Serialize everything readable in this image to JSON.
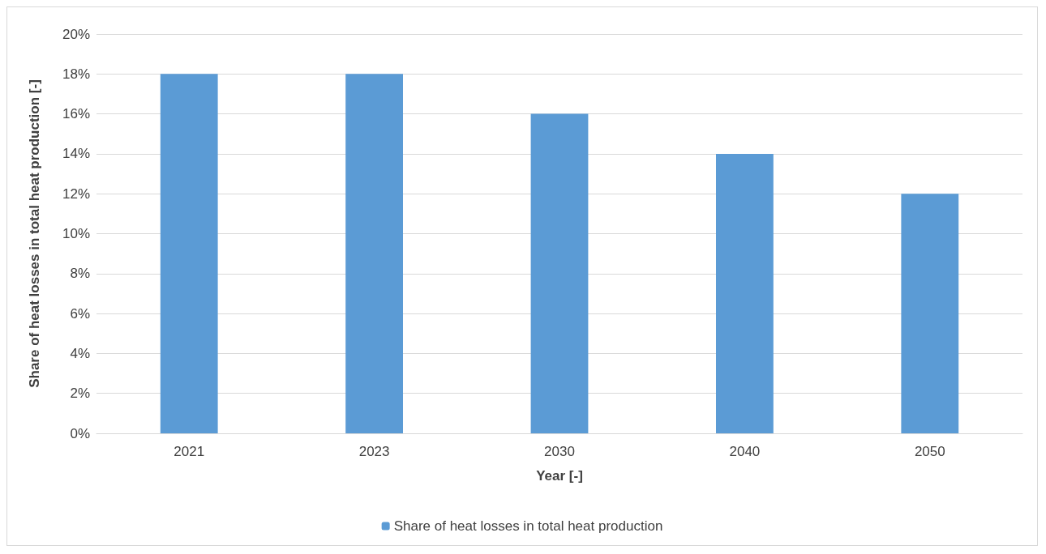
{
  "chart_data": {
    "type": "bar",
    "xlabel": "Year [-]",
    "ylabel": "Share of heat losses in total heat production [-]",
    "categories": [
      "2021",
      "2023",
      "2030",
      "2040",
      "2050"
    ],
    "series": [
      {
        "name": "Share of heat losses in total heat production",
        "color": "#5b9bd5",
        "values": [
          18,
          18,
          16,
          14,
          12
        ]
      }
    ],
    "ylim": [
      0,
      20
    ],
    "yticks": [
      {
        "value": 0,
        "label": "0%"
      },
      {
        "value": 2,
        "label": "2%"
      },
      {
        "value": 4,
        "label": "4%"
      },
      {
        "value": 6,
        "label": "6%"
      },
      {
        "value": 8,
        "label": "8%"
      },
      {
        "value": 10,
        "label": "10%"
      },
      {
        "value": 12,
        "label": "12%"
      },
      {
        "value": 14,
        "label": "14%"
      },
      {
        "value": 16,
        "label": "16%"
      },
      {
        "value": 18,
        "label": "18%"
      },
      {
        "value": 20,
        "label": "20%"
      }
    ],
    "grid": "y",
    "legend": "bottom"
  }
}
